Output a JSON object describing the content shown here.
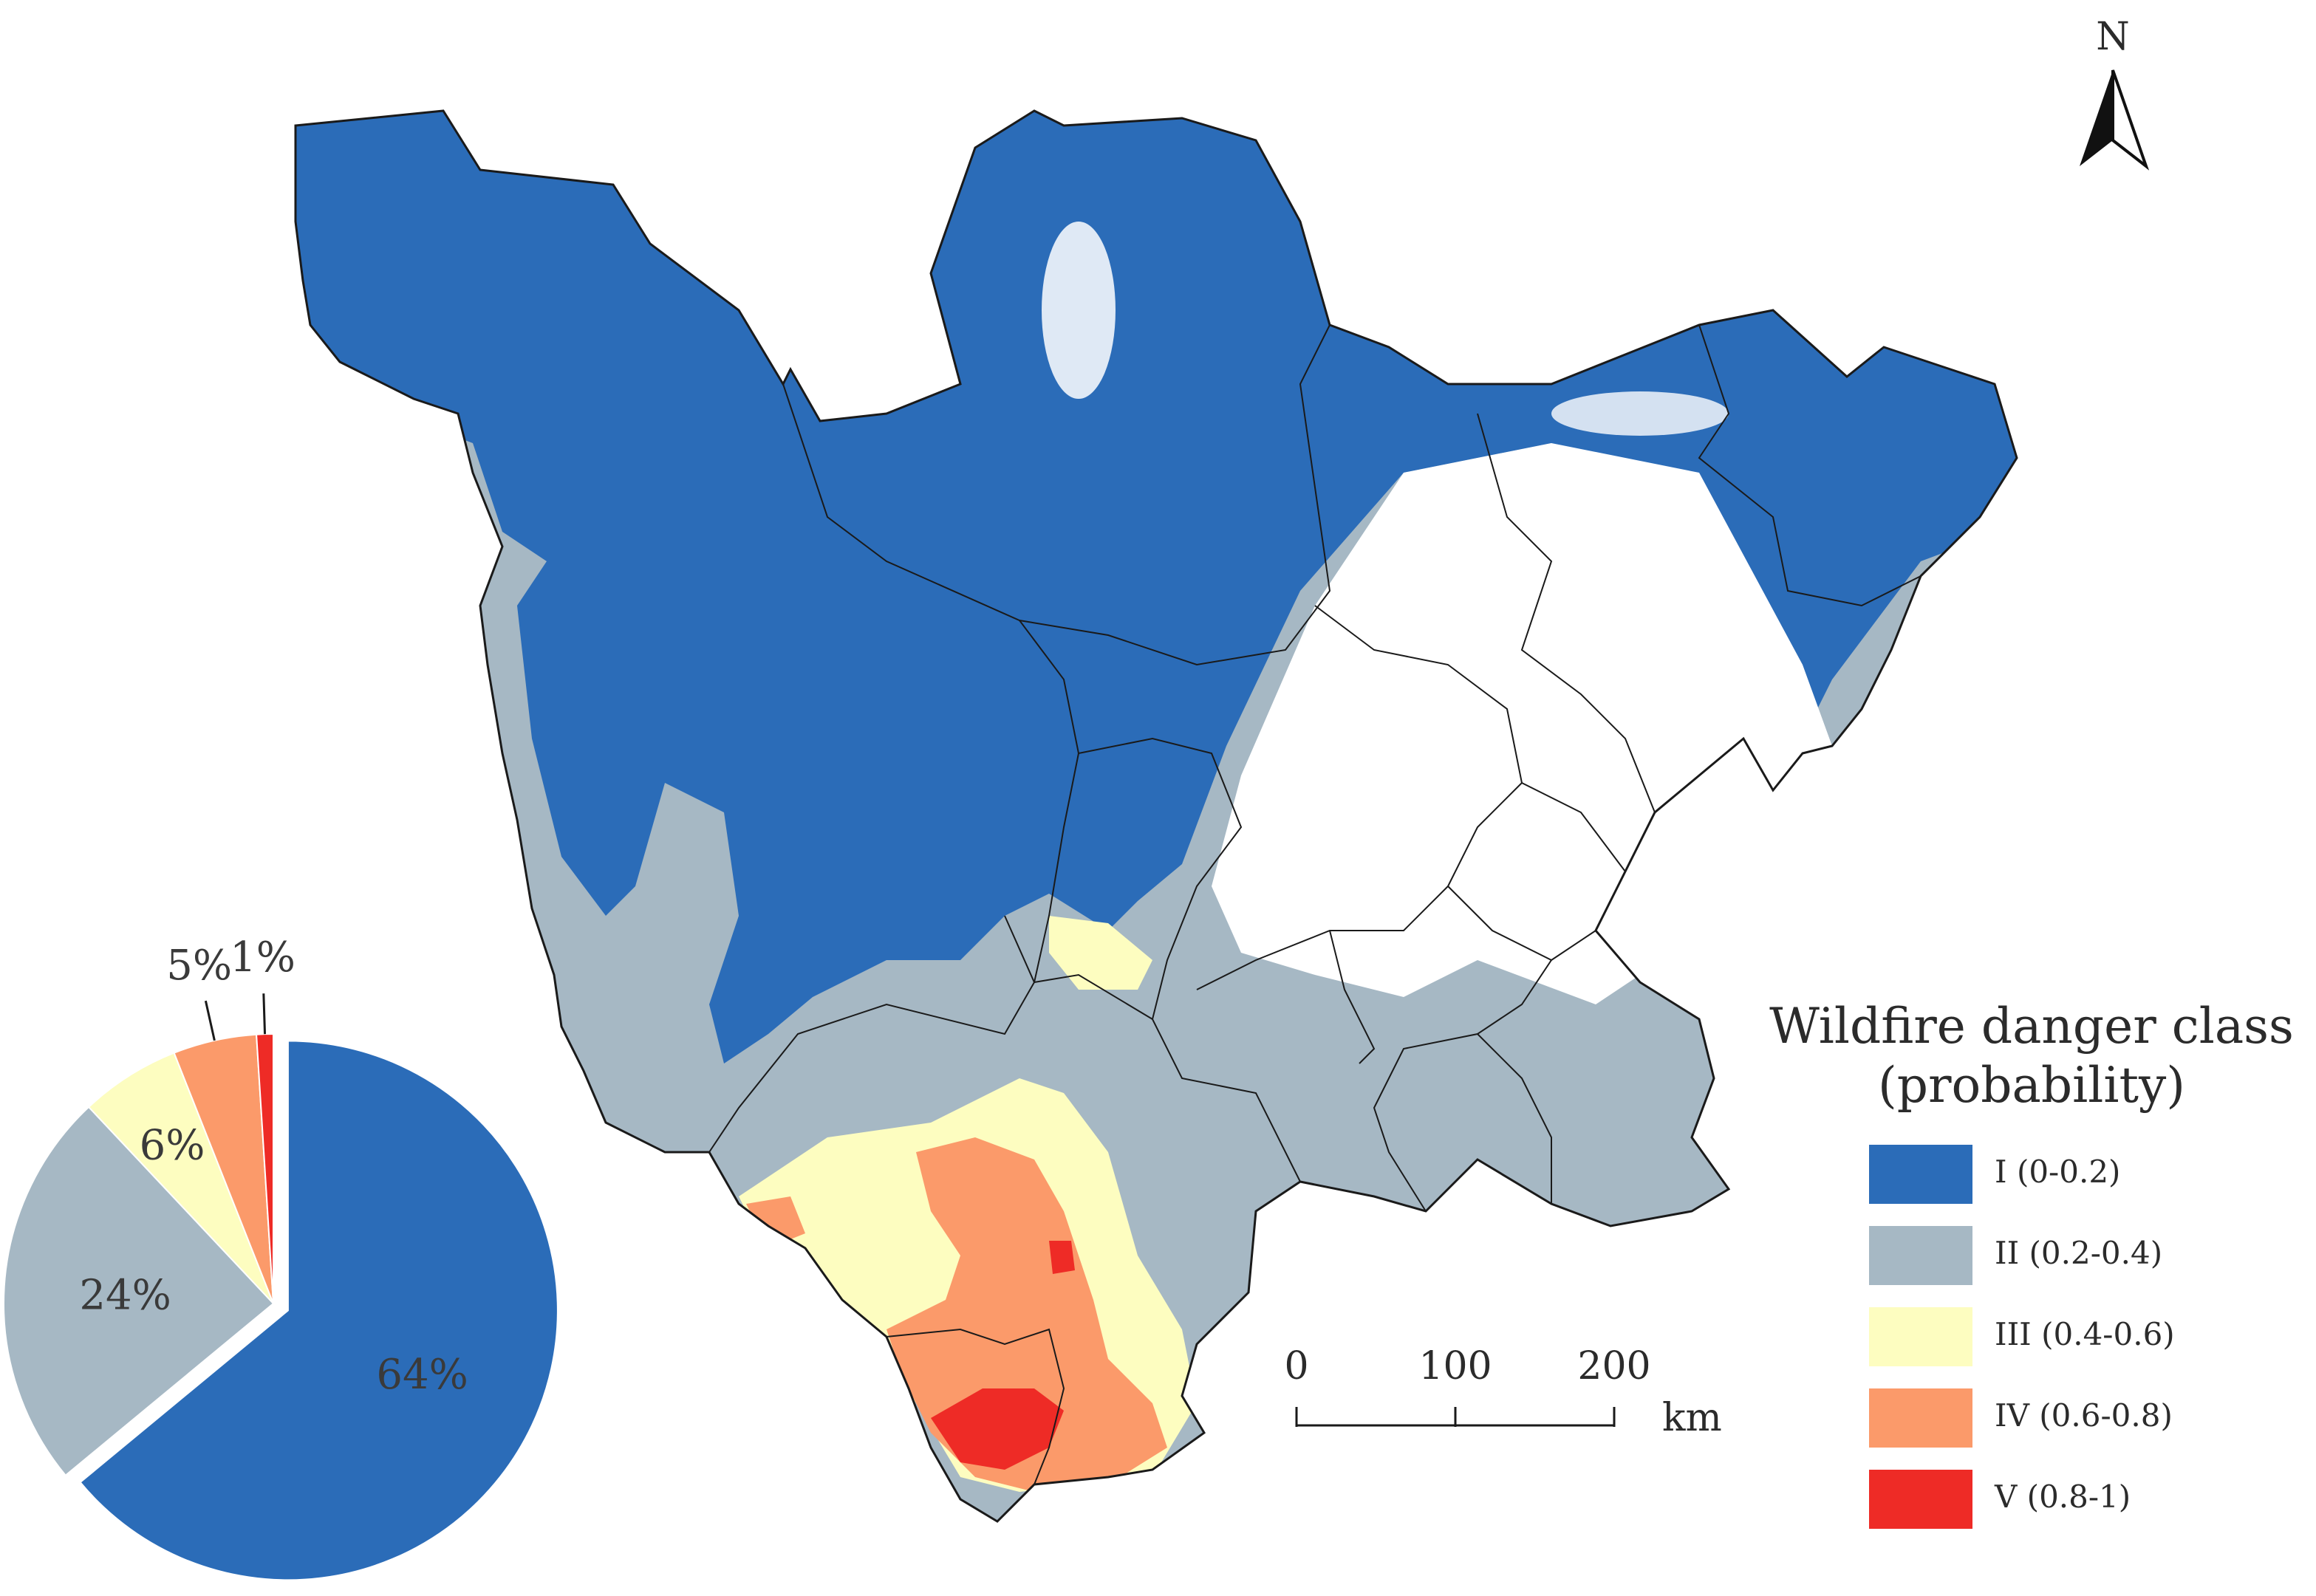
{
  "legend": {
    "title_line1": "Wildfire danger class",
    "title_line2": "(probability)",
    "classes": [
      {
        "label": "I  (0-0.2)",
        "color": "#2b6cb8"
      },
      {
        "label": "II (0.2-0.4)",
        "color": "#a6b8c4"
      },
      {
        "label": "III (0.4-0.6)",
        "color": "#fdfdc0"
      },
      {
        "label": "IV (0.6-0.8)",
        "color": "#fb9a6a"
      },
      {
        "label": "V (0.8-1)",
        "color": "#ee2b26"
      }
    ]
  },
  "scale_bar": {
    "ticks": [
      "0",
      "100",
      "200"
    ],
    "unit": "km"
  },
  "north_arrow": {
    "label": "N"
  },
  "chart_data": {
    "type": "pie",
    "categories": [
      "I (0-0.2)",
      "II (0.2-0.4)",
      "III (0.4-0.6)",
      "IV (0.6-0.8)",
      "V (0.8-1)"
    ],
    "values": [
      64,
      24,
      6,
      5,
      1
    ],
    "labels": [
      "64%",
      "24%",
      "6%",
      "5%",
      "1%"
    ],
    "exploded": [
      true,
      false,
      false,
      false,
      false
    ]
  },
  "colors": {
    "class_I": "#2b6cb8",
    "class_II": "#a6b8c4",
    "class_III": "#fdfdc0",
    "class_IV": "#fb9a6a",
    "class_V": "#ee2b26",
    "boundary": "#1a1a1a",
    "low_data": "#ffffff"
  }
}
